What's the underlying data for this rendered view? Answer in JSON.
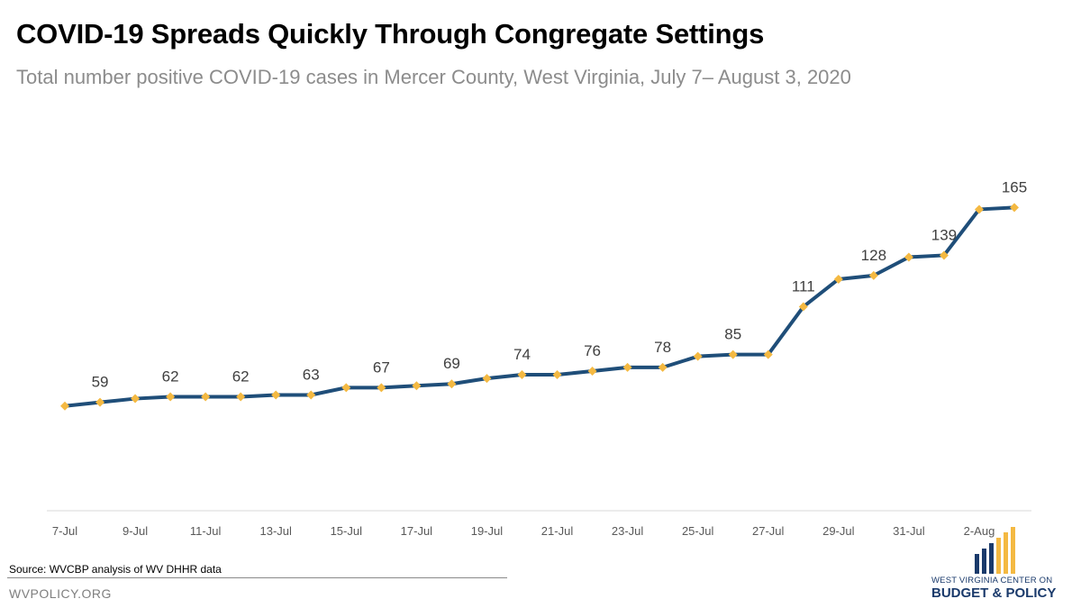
{
  "header": {
    "title": "COVID-19 Spreads Quickly Through Congregate Settings",
    "subtitle": "Total number positive COVID-19 cases in Mercer County, West Virginia, July 7– August 3, 2020"
  },
  "footer": {
    "source": "Source:  WVCBP analysis of WV DHHR data",
    "site": "WVPOLICY.ORG",
    "logo_line1": "WEST VIRGINIA CENTER ON",
    "logo_line2": "BUDGET & POLICY"
  },
  "colors": {
    "line": "#1f4e79",
    "marker": "#f4b942",
    "axis": "#d9d9d9",
    "label": "#404040",
    "logo_blue": "#1a3a6b",
    "logo_gold": "#f4b942"
  },
  "chart_data": {
    "type": "line",
    "title": "COVID-19 Spreads Quickly Through Congregate Settings",
    "subtitle": "Total number positive COVID-19 cases in Mercer County, West Virginia, July 7– August 3, 2020",
    "xlabel": "",
    "ylabel": "",
    "x": [
      "7-Jul",
      "8-Jul",
      "9-Jul",
      "10-Jul",
      "11-Jul",
      "12-Jul",
      "13-Jul",
      "14-Jul",
      "15-Jul",
      "16-Jul",
      "17-Jul",
      "18-Jul",
      "19-Jul",
      "20-Jul",
      "21-Jul",
      "22-Jul",
      "23-Jul",
      "24-Jul",
      "25-Jul",
      "26-Jul",
      "27-Jul",
      "28-Jul",
      "29-Jul",
      "30-Jul",
      "31-Jul",
      "1-Aug",
      "2-Aug",
      "3-Aug"
    ],
    "tick_labels": [
      "7-Jul",
      "9-Jul",
      "11-Jul",
      "13-Jul",
      "15-Jul",
      "17-Jul",
      "19-Jul",
      "21-Jul",
      "23-Jul",
      "25-Jul",
      "27-Jul",
      "29-Jul",
      "31-Jul",
      "2-Aug"
    ],
    "series": [
      {
        "values": [
          57,
          59,
          61,
          62,
          62,
          62,
          63,
          63,
          67,
          67,
          68,
          69,
          72,
          74,
          74,
          76,
          78,
          78,
          84,
          85,
          85,
          111,
          126,
          128,
          138,
          139,
          164,
          165
        ]
      }
    ],
    "data_labels": [
      {
        "index": 1,
        "text": "59"
      },
      {
        "index": 3,
        "text": "62"
      },
      {
        "index": 5,
        "text": "62"
      },
      {
        "index": 7,
        "text": "63"
      },
      {
        "index": 9,
        "text": "67"
      },
      {
        "index": 11,
        "text": "69"
      },
      {
        "index": 13,
        "text": "74"
      },
      {
        "index": 15,
        "text": "76"
      },
      {
        "index": 17,
        "text": "78"
      },
      {
        "index": 19,
        "text": "85"
      },
      {
        "index": 21,
        "text": "111"
      },
      {
        "index": 23,
        "text": "128"
      },
      {
        "index": 25,
        "text": "139"
      },
      {
        "index": 27,
        "text": "165"
      }
    ],
    "ylim": [
      0,
      225
    ],
    "grid": false,
    "y_axis_visible": false,
    "marker": "diamond"
  }
}
